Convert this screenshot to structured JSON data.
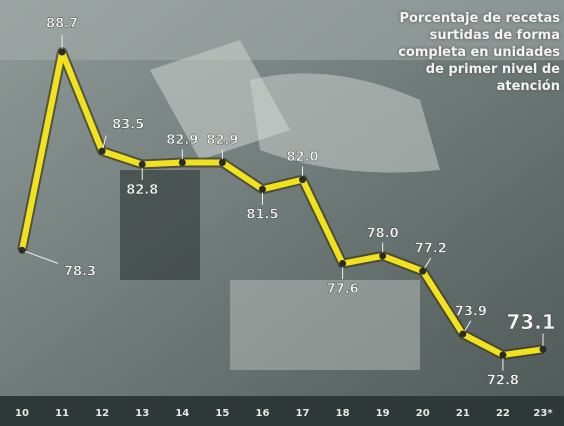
{
  "chart_data": {
    "type": "line",
    "title": "Porcentaje de recetas surtidas de forma completa en unidades de primer nivel de atención",
    "categories": [
      "10",
      "11",
      "12",
      "13",
      "14",
      "15",
      "16",
      "17",
      "18",
      "19",
      "20",
      "21",
      "22",
      "23*"
    ],
    "values": [
      78.3,
      88.7,
      83.5,
      82.8,
      82.9,
      82.9,
      81.5,
      82.0,
      77.6,
      78.0,
      77.2,
      73.9,
      72.8,
      73.1
    ],
    "value_labels": [
      "78.3",
      "88.7",
      "83.5",
      "82.8",
      "82.9",
      "82.9",
      "81.5",
      "82.0",
      "77.6",
      "78.0",
      "77.2",
      "73.9",
      "72.8",
      "73.1"
    ],
    "color": "#f2e21b"
  }
}
